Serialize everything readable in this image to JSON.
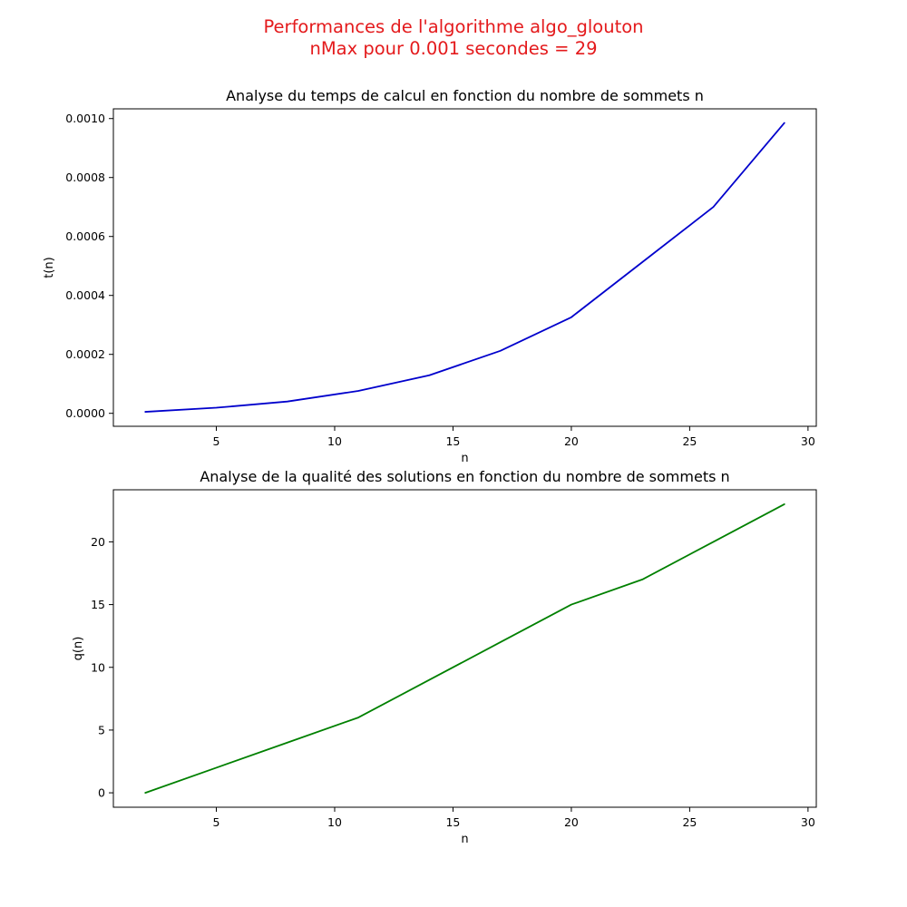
{
  "figure": {
    "suptitle_line1": "Performances de l'algorithme algo_glouton",
    "suptitle_line2": "nMax pour 0.001 secondes = 29",
    "suptitle_color": "#e41a1c"
  },
  "chart_data": [
    {
      "type": "line",
      "title": "Analyse du temps de calcul en fonction du nombre de sommets n",
      "xlabel": "n",
      "ylabel": "t(n)",
      "xlim": [
        0.65,
        30.35
      ],
      "ylim": [
        -4.4e-05,
        0.001033
      ],
      "xticks": [
        5,
        10,
        15,
        20,
        25,
        30
      ],
      "xtick_labels": [
        "5",
        "10",
        "15",
        "20",
        "25",
        "30"
      ],
      "yticks": [
        0,
        0.0002,
        0.0004,
        0.0006,
        0.0008,
        0.001
      ],
      "ytick_labels": [
        "0.0000",
        "0.0002",
        "0.0004",
        "0.0006",
        "0.0008",
        "0.0010"
      ],
      "grid": false,
      "series": [
        {
          "color": "#0000cc",
          "x": [
            2,
            5,
            8,
            11,
            14,
            17,
            20,
            23,
            26,
            29
          ],
          "y": [
            5e-06,
            1.9e-05,
            4e-05,
            7.6e-05,
            0.000129,
            0.000212,
            0.000326,
            0.000513,
            0.0007,
            0.000985
          ]
        }
      ]
    },
    {
      "type": "line",
      "title": "Analyse de la qualité des solutions en fonction du nombre de sommets n",
      "xlabel": "n",
      "ylabel": "q(n)",
      "xlim": [
        0.65,
        30.35
      ],
      "ylim": [
        -1.15,
        24.15
      ],
      "xticks": [
        5,
        10,
        15,
        20,
        25,
        30
      ],
      "xtick_labels": [
        "5",
        "10",
        "15",
        "20",
        "25",
        "30"
      ],
      "yticks": [
        0,
        5,
        10,
        15,
        20
      ],
      "ytick_labels": [
        "0",
        "5",
        "10",
        "15",
        "20"
      ],
      "grid": false,
      "series": [
        {
          "color": "#008000",
          "x": [
            2,
            5,
            8,
            11,
            14,
            17,
            20,
            23,
            26,
            29
          ],
          "y": [
            0,
            2,
            4,
            6,
            9,
            12,
            15,
            17,
            20,
            23
          ]
        }
      ]
    }
  ]
}
